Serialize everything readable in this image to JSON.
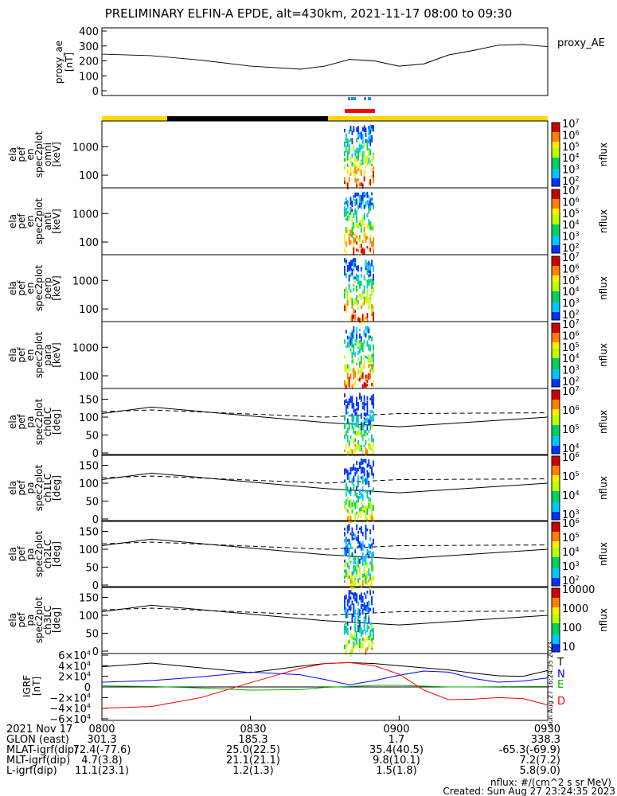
{
  "title": "PRELIMINARY ELFIN-A EPDE, alt=430km, 2021-11-17 08:00 to 09:30",
  "colors": {
    "state_bar_yellow": "#ffd700",
    "state_bar_black": "#000000",
    "science_red": "#ff0000",
    "science_blue": "#1e90ff",
    "grf_T": "#000000",
    "grf_N": "#0000ff",
    "grf_E": "#00b000",
    "grf_D": "#ff0000"
  },
  "chart_data": [
    {
      "type": "line",
      "panel": "proxy_ae",
      "ylabel_lines": [
        "proxy_ae",
        "[nT]"
      ],
      "legend": "proxy_AE",
      "ylim": [
        0,
        400
      ],
      "yticks": [
        "0",
        "100",
        "200",
        "300",
        "400"
      ],
      "x_minutes": [
        0,
        10,
        20,
        30,
        40,
        45,
        50,
        55,
        60,
        65,
        70,
        75,
        80,
        85,
        90
      ],
      "values": [
        245,
        235,
        205,
        165,
        145,
        165,
        210,
        200,
        165,
        180,
        240,
        270,
        305,
        310,
        295
      ]
    },
    {
      "type": "heatmap",
      "panel": "ela_pef_en_spec2plot_omni",
      "ylabel_lines": [
        "ela",
        "pef",
        "en",
        "spec2plot",
        "omni",
        "[keV]"
      ],
      "yscale": "log",
      "yticks": [
        "100",
        "1000"
      ],
      "colorbar": {
        "label": "nflux",
        "ticks": [
          "10",
          "10",
          "10",
          "10",
          "10",
          "10"
        ],
        "exponents": [
          "7",
          "6",
          "5",
          "4",
          "3",
          "2"
        ]
      }
    },
    {
      "type": "heatmap",
      "panel": "ela_pef_en_spec2plot_anti",
      "ylabel_lines": [
        "ela",
        "pef",
        "en",
        "spec2plot",
        "anti",
        "[keV]"
      ],
      "yscale": "log",
      "yticks": [
        "100",
        "1000"
      ],
      "colorbar": {
        "label": "nflux",
        "ticks": [
          "10",
          "10",
          "10",
          "10",
          "10",
          "10"
        ],
        "exponents": [
          "7",
          "6",
          "5",
          "4",
          "3",
          "2"
        ]
      }
    },
    {
      "type": "heatmap",
      "panel": "ela_pef_en_spec2plot_perp",
      "ylabel_lines": [
        "ela",
        "pef",
        "en",
        "spec2plot",
        "perp",
        "[keV]"
      ],
      "yscale": "log",
      "yticks": [
        "100",
        "1000"
      ],
      "colorbar": {
        "label": "nflux",
        "ticks": [
          "10",
          "10",
          "10",
          "10",
          "10",
          "10"
        ],
        "exponents": [
          "7",
          "6",
          "5",
          "4",
          "3",
          "2"
        ]
      }
    },
    {
      "type": "heatmap",
      "panel": "ela_pef_en_spec2plot_para",
      "ylabel_lines": [
        "ela",
        "pef",
        "en",
        "spec2plot",
        "para",
        "[keV]"
      ],
      "yscale": "log",
      "yticks": [
        "100",
        "1000"
      ],
      "colorbar": {
        "label": "nflux",
        "ticks": [
          "10",
          "10",
          "10",
          "10",
          "10",
          "10"
        ],
        "exponents": [
          "7",
          "6",
          "5",
          "4",
          "3",
          "2"
        ]
      }
    },
    {
      "type": "heatmap",
      "panel": "ela_pef_pa_spec2plot_ch0LC",
      "ylabel_lines": [
        "ela",
        "pef",
        "pa",
        "spec2plot",
        "ch0LC",
        "[deg]"
      ],
      "ylim": [
        0,
        180
      ],
      "yticks": [
        "0",
        "50",
        "100",
        "150"
      ],
      "colorbar": {
        "label": "nflux",
        "ticks": [
          "10",
          "10",
          "10",
          "10"
        ],
        "exponents": [
          "7",
          "6",
          "5",
          "4"
        ]
      }
    },
    {
      "type": "heatmap",
      "panel": "ela_pef_pa_spec2plot_ch1LC",
      "ylabel_lines": [
        "ela",
        "pef",
        "pa",
        "spec2plot",
        "ch1LC",
        "[deg]"
      ],
      "ylim": [
        0,
        180
      ],
      "yticks": [
        "0",
        "50",
        "100",
        "150"
      ],
      "colorbar": {
        "label": "nflux",
        "ticks": [
          "10",
          "10",
          "10",
          "10"
        ],
        "exponents": [
          "6",
          "5",
          "4",
          "3"
        ]
      }
    },
    {
      "type": "heatmap",
      "panel": "ela_pef_pa_spec2plot_ch2LC",
      "ylabel_lines": [
        "ela",
        "pef",
        "pa",
        "spec2plot",
        "ch2LC",
        "[deg]"
      ],
      "ylim": [
        0,
        180
      ],
      "yticks": [
        "0",
        "50",
        "100",
        "150"
      ],
      "colorbar": {
        "label": "nflux",
        "ticks": [
          "10",
          "10",
          "10",
          "10",
          "10"
        ],
        "exponents": [
          "6",
          "5",
          "4",
          "3",
          "2"
        ]
      }
    },
    {
      "type": "heatmap",
      "panel": "ela_pef_pa_spec2plot_ch3LC",
      "ylabel_lines": [
        "ela",
        "pef",
        "pa",
        "spec2plot",
        "ch3LC",
        "[deg]"
      ],
      "ylim": [
        0,
        180
      ],
      "yticks": [
        "0",
        "50",
        "100",
        "150"
      ],
      "colorbar": {
        "label": "nflux",
        "ticks": [
          "10000",
          "1000",
          "100",
          "10"
        ],
        "exponents": [
          "",
          "",
          "",
          ""
        ]
      }
    },
    {
      "type": "line",
      "panel": "IGRF",
      "ylabel_lines": [
        "IGRF",
        "[nT]"
      ],
      "ylim": [
        -60000,
        60000
      ],
      "yticks": [
        "6×10",
        "4×10",
        "2×10",
        "0",
        "−2×10",
        "−4×10",
        "−6×10"
      ],
      "ytick_exponents": [
        "4",
        "4",
        "4",
        "",
        "4",
        "4",
        "4"
      ],
      "legend": [
        "T",
        "N",
        "E",
        "D"
      ],
      "x_minutes": [
        0,
        10,
        20,
        30,
        40,
        45,
        50,
        55,
        60,
        65,
        70,
        75,
        80,
        85,
        90
      ],
      "series": [
        {
          "name": "T",
          "values": [
            38000,
            45000,
            36000,
            27000,
            39000,
            44000,
            46000,
            44000,
            40000,
            36000,
            32000,
            26000,
            21000,
            20000,
            31000
          ]
        },
        {
          "name": "N",
          "values": [
            9000,
            12000,
            19000,
            28000,
            23000,
            14000,
            4000,
            12000,
            22000,
            30000,
            28000,
            16000,
            9000,
            11000,
            17000
          ]
        },
        {
          "name": "E",
          "values": [
            2000,
            1000,
            -2000,
            -6000,
            -5000,
            -1000,
            1000,
            3000,
            3000,
            1500,
            0,
            0,
            500,
            1000,
            1000
          ]
        },
        {
          "name": "D",
          "values": [
            -40000,
            -37000,
            -20000,
            8000,
            35000,
            44000,
            46000,
            40000,
            24000,
            -6000,
            -24000,
            -23000,
            -20000,
            -22000,
            -34000
          ]
        }
      ]
    }
  ],
  "xaxis": {
    "rows": [
      {
        "label": "2021 Nov 17",
        "values": [
          "0800",
          "0830",
          "0900",
          "0930"
        ]
      },
      {
        "label": "GLON (east)",
        "values": [
          "301.3",
          "185.3",
          "1.7",
          "338.3"
        ]
      },
      {
        "label": "MLAT-igrf(dip)",
        "values": [
          "72.4(-77.6)",
          "25.0(22.5)",
          "35.4(40.5)",
          "-65.3(-69.9)"
        ]
      },
      {
        "label": "MLT-igrf(dip)",
        "values": [
          "4.7(3.8)",
          "21.1(21.1)",
          "9.8(10.1)",
          "7.2(7.2)"
        ]
      },
      {
        "label": "L-igrf(dip)",
        "values": [
          "11.1(23.1)",
          "1.2(1.3)",
          "1.5(1.8)",
          "5.8(9.0)"
        ]
      }
    ]
  },
  "footer": {
    "units": "nflux: #/(cm^2 s sr MeV)",
    "created": "Created: Sun Aug 27 23:24:35 2023",
    "side_stamp": "Sun Aug 27 16:24:35 2023"
  }
}
